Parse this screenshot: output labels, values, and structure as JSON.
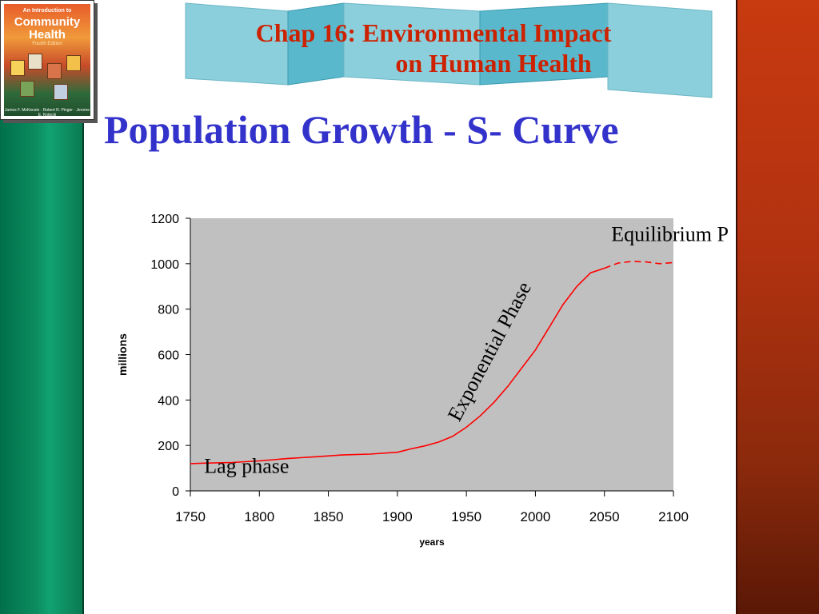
{
  "slide": {
    "chapter_line1": "Chap 16: Environmental Impact",
    "chapter_line2": "on Human Health",
    "title": "Population Growth - S- Curve"
  },
  "book_cover": {
    "subtitle": "An Introduction to",
    "title_line1": "Community",
    "title_line2": "Health",
    "edition": "Fourth Edition",
    "authors": "James F. McKenzie · Robert R. Pinger · Jerome E. Kotecki"
  },
  "colors": {
    "left_band": "#0a8a5c",
    "right_band": "#b23210",
    "chapter_text": "#cc2200",
    "title_text": "#3333cc",
    "ribbon": "#7fc8d8",
    "plot_bg": "#c0c0c0",
    "curve": "#ff0000"
  },
  "chart_data": {
    "type": "line",
    "xlabel": "years",
    "ylabel": "millions",
    "xlim": [
      1750,
      2100
    ],
    "ylim": [
      0,
      1200
    ],
    "x_ticks": [
      1750,
      1800,
      1850,
      1900,
      1950,
      2000,
      2050,
      2100
    ],
    "y_ticks": [
      0,
      200,
      400,
      600,
      800,
      1000,
      1200
    ],
    "grid": false,
    "series": [
      {
        "style": "solid",
        "x": [
          1750,
          1760,
          1780,
          1800,
          1820,
          1840,
          1860,
          1880,
          1900,
          1910,
          1920,
          1930,
          1940,
          1950,
          1960,
          1970,
          1980,
          1990,
          2000,
          2010,
          2020,
          2030,
          2040,
          2050
        ],
        "y": [
          120,
          122,
          125,
          132,
          142,
          150,
          158,
          162,
          170,
          185,
          198,
          215,
          240,
          280,
          330,
          390,
          460,
          540,
          620,
          720,
          820,
          900,
          960,
          980
        ]
      },
      {
        "style": "dashed",
        "x": [
          2050,
          2060,
          2070,
          2080,
          2090,
          2100
        ],
        "y": [
          980,
          1003,
          1010,
          1008,
          1000,
          1005
        ]
      }
    ],
    "annotations": [
      {
        "text": "Equilibrium Phase?",
        "x": 2055,
        "y": 1100,
        "rotation": 0
      },
      {
        "text": "Exponential Phase",
        "x": 1971,
        "y": 600,
        "rotation": -62
      },
      {
        "text": "Lag phase",
        "x": 1760,
        "y": 80,
        "rotation": 0
      }
    ]
  }
}
